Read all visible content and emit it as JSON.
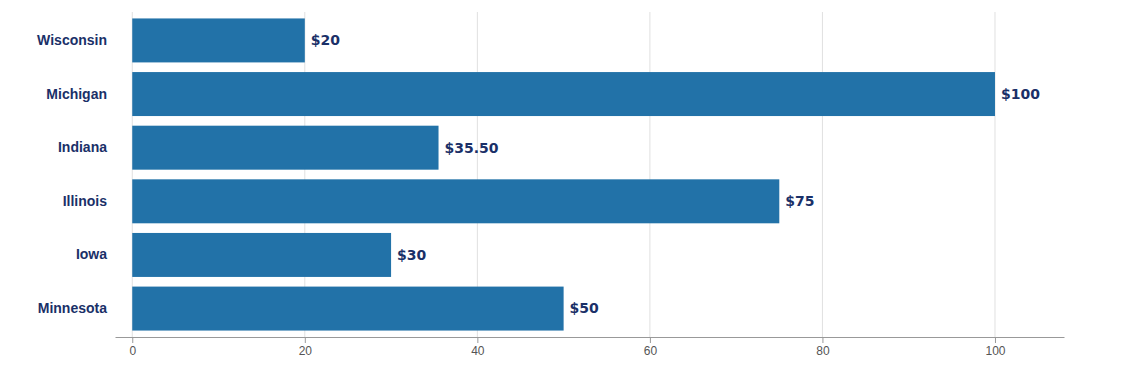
{
  "chart_data": {
    "type": "bar",
    "orientation": "horizontal",
    "categories": [
      "Wisconsin",
      "Michigan",
      "Indiana",
      "Illinois",
      "Iowa",
      "Minnesota"
    ],
    "values": [
      20,
      100,
      35.5,
      75,
      30,
      50
    ],
    "value_labels": [
      "$20",
      "$100",
      "$35.50",
      "$75",
      "$30",
      "$50"
    ],
    "data_labels": true,
    "color": "#2272a8",
    "xlim": [
      -2,
      108
    ],
    "xticks": [
      0,
      20,
      40,
      60,
      80,
      100
    ],
    "grid": true
  }
}
